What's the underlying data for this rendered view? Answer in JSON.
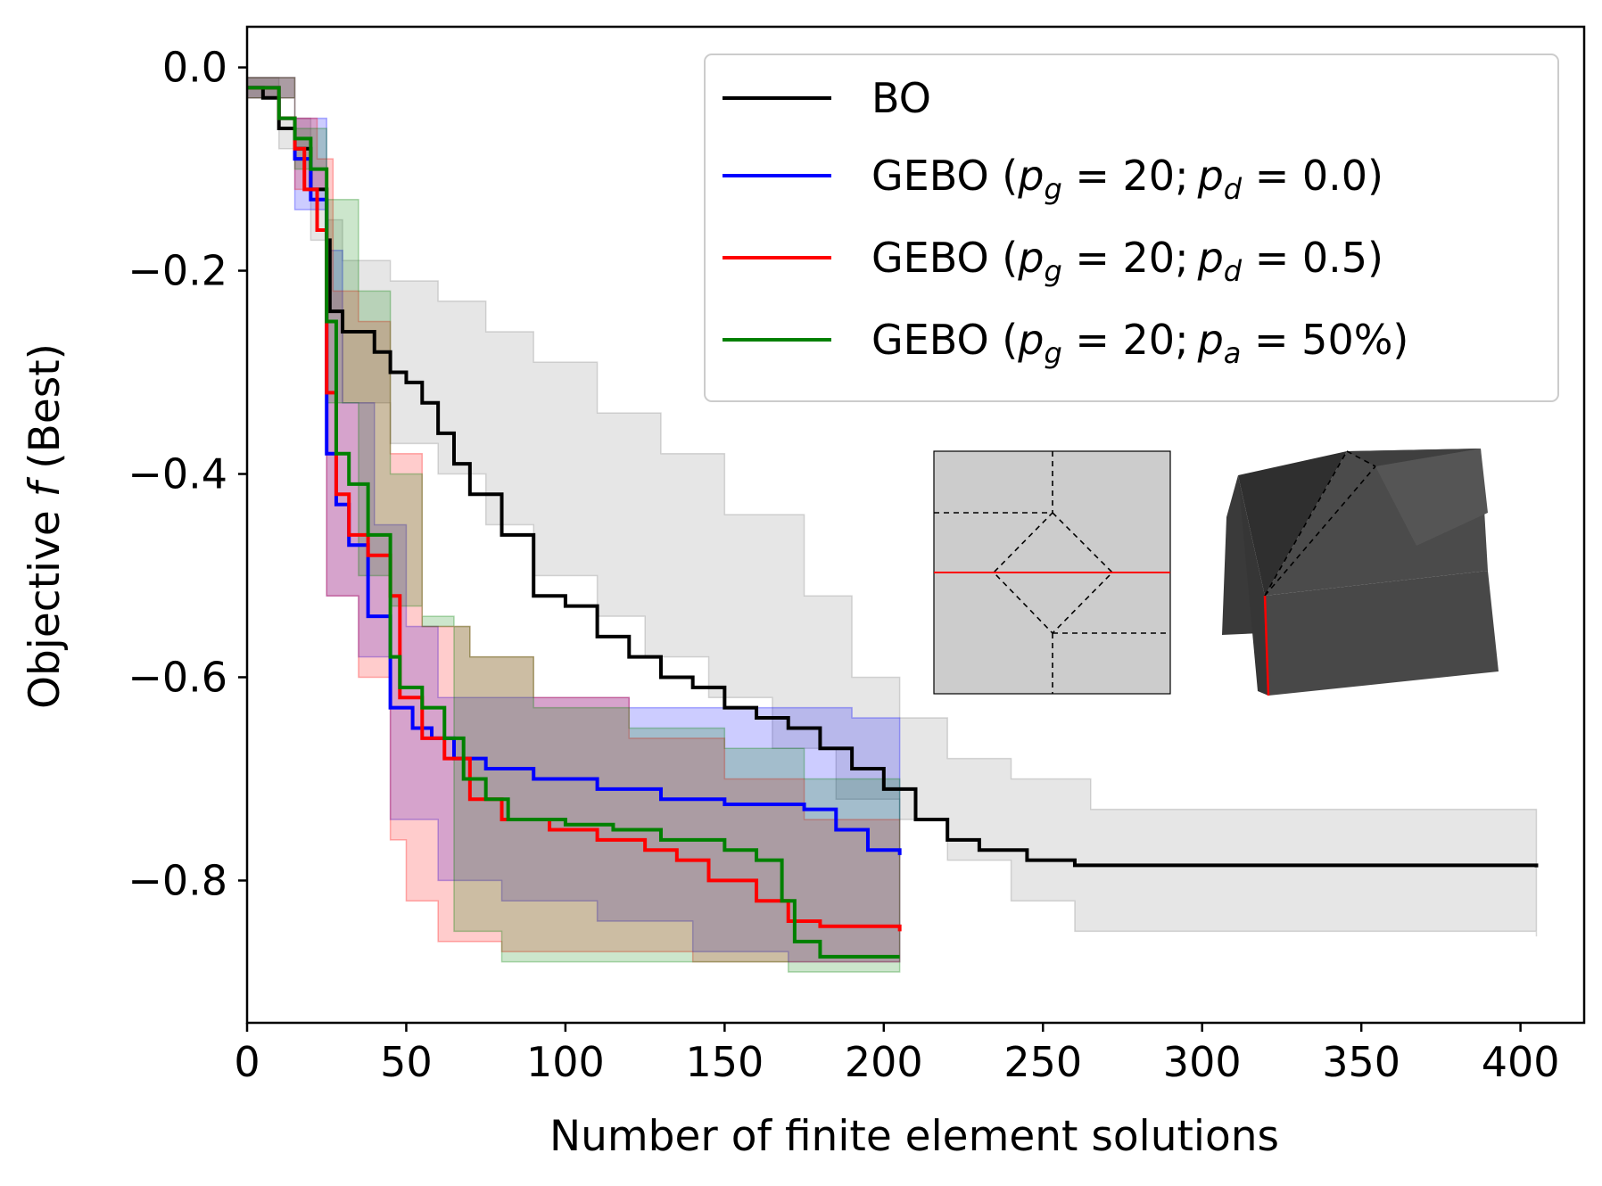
{
  "chart_data": {
    "type": "line",
    "xlabel": "Number of finite element solutions",
    "ylabel": "Objective f (Best)",
    "xlim": [
      0,
      420
    ],
    "ylim": [
      -0.94,
      0.04
    ],
    "xticks": [
      0,
      50,
      100,
      150,
      200,
      250,
      300,
      350,
      400
    ],
    "xtick_labels": [
      "0",
      "50",
      "100",
      "150",
      "200",
      "250",
      "300",
      "350",
      "400"
    ],
    "yticks": [
      0.0,
      -0.2,
      -0.4,
      -0.6,
      -0.8
    ],
    "ytick_labels": [
      "0.0",
      "−0.2",
      "−0.4",
      "−0.6",
      "−0.8"
    ],
    "grid": false,
    "legend_position": "top-right",
    "series": [
      {
        "name": "BO",
        "color": "#000000",
        "fill_color": "#808080",
        "step": true,
        "points": [
          [
            0,
            -0.02
          ],
          [
            5,
            -0.03
          ],
          [
            10,
            -0.06
          ],
          [
            15,
            -0.08
          ],
          [
            20,
            -0.12
          ],
          [
            25,
            -0.17
          ],
          [
            26,
            -0.24
          ],
          [
            30,
            -0.26
          ],
          [
            40,
            -0.28
          ],
          [
            45,
            -0.3
          ],
          [
            50,
            -0.31
          ],
          [
            55,
            -0.33
          ],
          [
            60,
            -0.36
          ],
          [
            65,
            -0.39
          ],
          [
            70,
            -0.42
          ],
          [
            80,
            -0.46
          ],
          [
            90,
            -0.52
          ],
          [
            100,
            -0.53
          ],
          [
            110,
            -0.56
          ],
          [
            120,
            -0.58
          ],
          [
            130,
            -0.6
          ],
          [
            140,
            -0.61
          ],
          [
            150,
            -0.63
          ],
          [
            160,
            -0.64
          ],
          [
            170,
            -0.65
          ],
          [
            180,
            -0.67
          ],
          [
            190,
            -0.69
          ],
          [
            200,
            -0.71
          ],
          [
            210,
            -0.74
          ],
          [
            220,
            -0.76
          ],
          [
            230,
            -0.77
          ],
          [
            245,
            -0.78
          ],
          [
            260,
            -0.785
          ],
          [
            405,
            -0.787
          ]
        ],
        "upper": [
          [
            0,
            -0.01
          ],
          [
            10,
            -0.05
          ],
          [
            20,
            -0.1
          ],
          [
            25,
            -0.15
          ],
          [
            30,
            -0.19
          ],
          [
            45,
            -0.21
          ],
          [
            60,
            -0.23
          ],
          [
            75,
            -0.26
          ],
          [
            90,
            -0.29
          ],
          [
            110,
            -0.34
          ],
          [
            130,
            -0.38
          ],
          [
            150,
            -0.44
          ],
          [
            175,
            -0.52
          ],
          [
            190,
            -0.6
          ],
          [
            205,
            -0.64
          ],
          [
            220,
            -0.68
          ],
          [
            240,
            -0.7
          ],
          [
            265,
            -0.73
          ],
          [
            405,
            -0.73
          ]
        ],
        "lower": [
          [
            0,
            -0.03
          ],
          [
            10,
            -0.08
          ],
          [
            20,
            -0.17
          ],
          [
            25,
            -0.24
          ],
          [
            30,
            -0.33
          ],
          [
            45,
            -0.37
          ],
          [
            60,
            -0.4
          ],
          [
            75,
            -0.45
          ],
          [
            90,
            -0.5
          ],
          [
            110,
            -0.54
          ],
          [
            125,
            -0.58
          ],
          [
            145,
            -0.62
          ],
          [
            165,
            -0.67
          ],
          [
            185,
            -0.72
          ],
          [
            205,
            -0.74
          ],
          [
            220,
            -0.78
          ],
          [
            240,
            -0.82
          ],
          [
            260,
            -0.85
          ],
          [
            405,
            -0.855
          ]
        ]
      },
      {
        "name": "GEBO (p_g = 20; p_d = 0.0)",
        "color": "#0000ff",
        "fill_color": "#0000ff",
        "step": true,
        "points": [
          [
            0,
            -0.02
          ],
          [
            10,
            -0.05
          ],
          [
            15,
            -0.09
          ],
          [
            20,
            -0.13
          ],
          [
            25,
            -0.38
          ],
          [
            28,
            -0.43
          ],
          [
            32,
            -0.47
          ],
          [
            38,
            -0.54
          ],
          [
            45,
            -0.63
          ],
          [
            52,
            -0.65
          ],
          [
            58,
            -0.66
          ],
          [
            65,
            -0.68
          ],
          [
            75,
            -0.69
          ],
          [
            90,
            -0.7
          ],
          [
            110,
            -0.71
          ],
          [
            130,
            -0.72
          ],
          [
            150,
            -0.725
          ],
          [
            175,
            -0.73
          ],
          [
            185,
            -0.75
          ],
          [
            195,
            -0.77
          ],
          [
            205,
            -0.775
          ]
        ],
        "upper": [
          [
            0,
            -0.01
          ],
          [
            15,
            -0.05
          ],
          [
            25,
            -0.18
          ],
          [
            30,
            -0.33
          ],
          [
            40,
            -0.45
          ],
          [
            50,
            -0.55
          ],
          [
            60,
            -0.62
          ],
          [
            80,
            -0.62
          ],
          [
            120,
            -0.63
          ],
          [
            160,
            -0.63
          ],
          [
            190,
            -0.64
          ],
          [
            205,
            -0.64
          ]
        ],
        "lower": [
          [
            0,
            -0.03
          ],
          [
            15,
            -0.14
          ],
          [
            25,
            -0.52
          ],
          [
            35,
            -0.58
          ],
          [
            45,
            -0.74
          ],
          [
            60,
            -0.8
          ],
          [
            80,
            -0.82
          ],
          [
            110,
            -0.84
          ],
          [
            140,
            -0.87
          ],
          [
            170,
            -0.88
          ],
          [
            205,
            -0.88
          ]
        ]
      },
      {
        "name": "GEBO (p_g = 20; p_d = 0.5)",
        "color": "#ff0000",
        "fill_color": "#ff0000",
        "step": true,
        "points": [
          [
            0,
            -0.02
          ],
          [
            10,
            -0.05
          ],
          [
            15,
            -0.08
          ],
          [
            18,
            -0.12
          ],
          [
            22,
            -0.16
          ],
          [
            25,
            -0.32
          ],
          [
            28,
            -0.42
          ],
          [
            32,
            -0.46
          ],
          [
            38,
            -0.48
          ],
          [
            45,
            -0.52
          ],
          [
            48,
            -0.62
          ],
          [
            55,
            -0.66
          ],
          [
            62,
            -0.68
          ],
          [
            70,
            -0.72
          ],
          [
            80,
            -0.74
          ],
          [
            95,
            -0.75
          ],
          [
            110,
            -0.76
          ],
          [
            125,
            -0.77
          ],
          [
            135,
            -0.78
          ],
          [
            145,
            -0.8
          ],
          [
            160,
            -0.82
          ],
          [
            170,
            -0.84
          ],
          [
            180,
            -0.845
          ],
          [
            205,
            -0.85
          ]
        ],
        "upper": [
          [
            0,
            -0.01
          ],
          [
            15,
            -0.05
          ],
          [
            22,
            -0.09
          ],
          [
            27,
            -0.22
          ],
          [
            35,
            -0.25
          ],
          [
            45,
            -0.38
          ],
          [
            55,
            -0.55
          ],
          [
            70,
            -0.58
          ],
          [
            90,
            -0.62
          ],
          [
            120,
            -0.66
          ],
          [
            150,
            -0.7
          ],
          [
            175,
            -0.74
          ],
          [
            205,
            -0.78
          ]
        ],
        "lower": [
          [
            0,
            -0.03
          ],
          [
            15,
            -0.12
          ],
          [
            25,
            -0.52
          ],
          [
            35,
            -0.6
          ],
          [
            45,
            -0.76
          ],
          [
            50,
            -0.82
          ],
          [
            60,
            -0.86
          ],
          [
            80,
            -0.87
          ],
          [
            110,
            -0.87
          ],
          [
            140,
            -0.88
          ],
          [
            170,
            -0.88
          ],
          [
            205,
            -0.88
          ]
        ]
      },
      {
        "name": "GEBO (p_g = 20; p_a = 50%)",
        "color": "#008000",
        "fill_color": "#008000",
        "step": true,
        "points": [
          [
            0,
            -0.02
          ],
          [
            10,
            -0.05
          ],
          [
            15,
            -0.07
          ],
          [
            20,
            -0.1
          ],
          [
            25,
            -0.25
          ],
          [
            28,
            -0.38
          ],
          [
            32,
            -0.41
          ],
          [
            38,
            -0.46
          ],
          [
            45,
            -0.58
          ],
          [
            48,
            -0.61
          ],
          [
            55,
            -0.63
          ],
          [
            62,
            -0.66
          ],
          [
            68,
            -0.7
          ],
          [
            75,
            -0.72
          ],
          [
            82,
            -0.74
          ],
          [
            100,
            -0.745
          ],
          [
            115,
            -0.75
          ],
          [
            130,
            -0.76
          ],
          [
            150,
            -0.77
          ],
          [
            160,
            -0.78
          ],
          [
            168,
            -0.82
          ],
          [
            172,
            -0.86
          ],
          [
            180,
            -0.875
          ],
          [
            205,
            -0.875
          ]
        ],
        "upper": [
          [
            0,
            -0.01
          ],
          [
            15,
            -0.06
          ],
          [
            25,
            -0.13
          ],
          [
            35,
            -0.22
          ],
          [
            45,
            -0.4
          ],
          [
            55,
            -0.55
          ],
          [
            70,
            -0.58
          ],
          [
            90,
            -0.63
          ],
          [
            120,
            -0.65
          ],
          [
            150,
            -0.67
          ],
          [
            175,
            -0.7
          ],
          [
            205,
            -0.75
          ]
        ],
        "lower": [
          [
            0,
            -0.03
          ],
          [
            15,
            -0.1
          ],
          [
            25,
            -0.33
          ],
          [
            35,
            -0.5
          ],
          [
            45,
            -0.53
          ],
          [
            55,
            -0.54
          ],
          [
            65,
            -0.85
          ],
          [
            80,
            -0.88
          ],
          [
            110,
            -0.88
          ],
          [
            150,
            -0.88
          ],
          [
            170,
            -0.89
          ],
          [
            205,
            -0.89
          ]
        ]
      }
    ],
    "legend": [
      {
        "main": "BO",
        "color": "#000000"
      },
      {
        "pre": "GEBO (",
        "a": "p",
        "asub": "g",
        "mid": " = 20;",
        "b": "p",
        "bsub": "d",
        "post": " = 0.0)",
        "color": "#0000ff"
      },
      {
        "pre": "GEBO (",
        "a": "p",
        "asub": "g",
        "mid": " = 20;",
        "b": "p",
        "bsub": "d",
        "post": " = 0.5)",
        "color": "#ff0000"
      },
      {
        "pre": "GEBO (",
        "a": "p",
        "asub": "g",
        "mid": " = 20;",
        "b": "p",
        "bsub": "a",
        "post": " = 50%)",
        "color": "#008000"
      }
    ],
    "insets": [
      {
        "kind": "crease-pattern",
        "fill": "#cccccc",
        "crease_color": "#ff0000"
      },
      {
        "kind": "folded-shape-3d",
        "fill": "#4a4a4a",
        "crease_color": "#ff0000"
      }
    ]
  }
}
